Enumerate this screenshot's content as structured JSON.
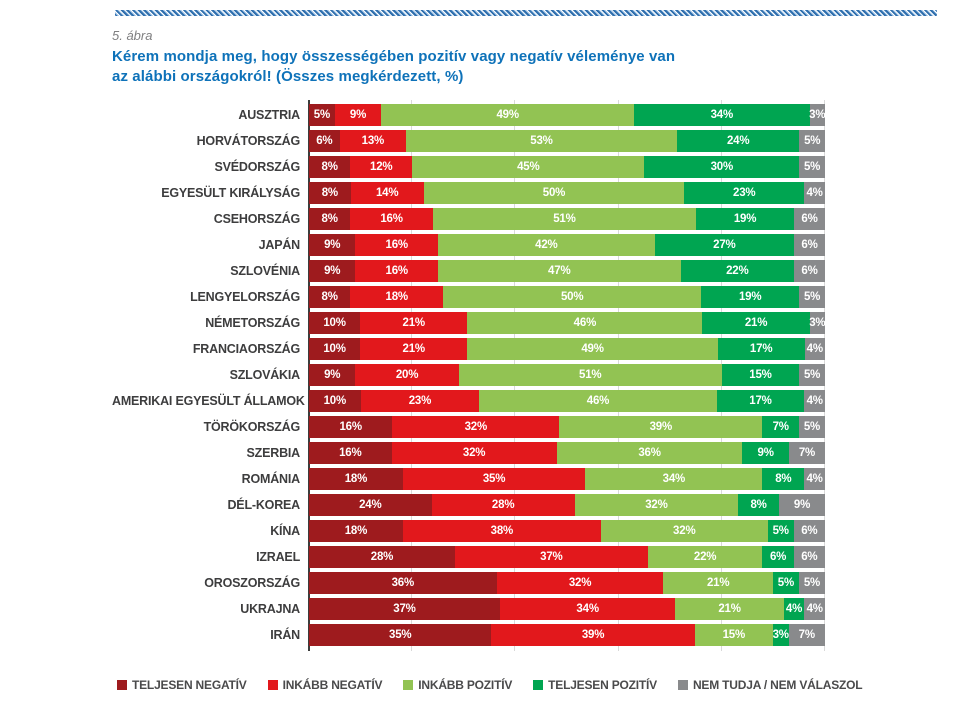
{
  "figure_label": "5. ábra",
  "title_line1": "Kérem mondja meg, hogy összességében pozitív vagy negatív véleménye van",
  "title_line2": "az alábbi országokról! (Összes megkérdezett, %)",
  "colors": {
    "title_blue": "#0e72b9",
    "teljesen_negativ": "#9e1b1e",
    "inkabb_negativ": "#e2181c",
    "inkabb_pozitiv": "#92c353",
    "teljesen_pozitiv": "#00a551",
    "nem_tudja": "#898a8c",
    "gridline": "#d9d9d9",
    "axis": "#3c3c3c"
  },
  "chart_data": {
    "type": "bar",
    "orientation": "horizontal_stacked",
    "value_suffix": "%",
    "xlim": [
      0,
      100
    ],
    "grid_step": 20,
    "legend_position": "bottom",
    "categories": [
      "AUSZTRIA",
      "HORVÁTORSZÁG",
      "SVÉDORSZÁG",
      "EGYESÜLT KIRÁLYSÁG",
      "CSEHORSZÁG",
      "JAPÁN",
      "SZLOVÉNIA",
      "LENGYELORSZÁG",
      "NÉMETORSZÁG",
      "FRANCIAORSZÁG",
      "SZLOVÁKIA",
      "AMERIKAI EGYESÜLT ÁLLAMOK",
      "TÖRÖKORSZÁG",
      "SZERBIA",
      "ROMÁNIA",
      "DÉL-KOREA",
      "KÍNA",
      "IZRAEL",
      "OROSZORSZÁG",
      "UKRAJNA",
      "IRÁN"
    ],
    "series": [
      {
        "name": "TELJESEN NEGATÍV",
        "color": "#9e1b1e",
        "values": [
          5,
          6,
          8,
          8,
          8,
          9,
          9,
          8,
          10,
          10,
          9,
          10,
          16,
          16,
          18,
          24,
          18,
          28,
          36,
          37,
          35
        ]
      },
      {
        "name": "INKÁBB NEGATÍV",
        "color": "#e2181c",
        "values": [
          9,
          13,
          12,
          14,
          16,
          16,
          16,
          18,
          21,
          21,
          20,
          23,
          32,
          32,
          35,
          28,
          38,
          37,
          32,
          34,
          39
        ]
      },
      {
        "name": "INKÁBB POZITÍV",
        "color": "#92c353",
        "values": [
          49,
          53,
          45,
          50,
          51,
          42,
          47,
          50,
          46,
          49,
          51,
          46,
          39,
          36,
          34,
          32,
          32,
          22,
          21,
          21,
          15
        ]
      },
      {
        "name": "TELJESEN POZITÍV",
        "color": "#00a551",
        "values": [
          34,
          24,
          30,
          23,
          19,
          27,
          22,
          19,
          21,
          17,
          15,
          17,
          7,
          9,
          8,
          8,
          5,
          6,
          5,
          4,
          3
        ]
      },
      {
        "name": "NEM TUDJA / NEM VÁLASZOL",
        "color": "#898a8c",
        "values": [
          3,
          5,
          5,
          4,
          6,
          6,
          6,
          5,
          3,
          4,
          5,
          4,
          5,
          7,
          4,
          9,
          6,
          6,
          5,
          4,
          7
        ]
      }
    ]
  },
  "legend": {
    "items": [
      {
        "label": "TELJESEN NEGATÍV",
        "color": "#9e1b1e"
      },
      {
        "label": "INKÁBB NEGATÍV",
        "color": "#e2181c"
      },
      {
        "label": "INKÁBB POZITÍV",
        "color": "#92c353"
      },
      {
        "label": "TELJESEN POZITÍV",
        "color": "#00a551"
      },
      {
        "label": "NEM TUDJA / NEM VÁLASZOL",
        "color": "#898a8c"
      }
    ]
  }
}
